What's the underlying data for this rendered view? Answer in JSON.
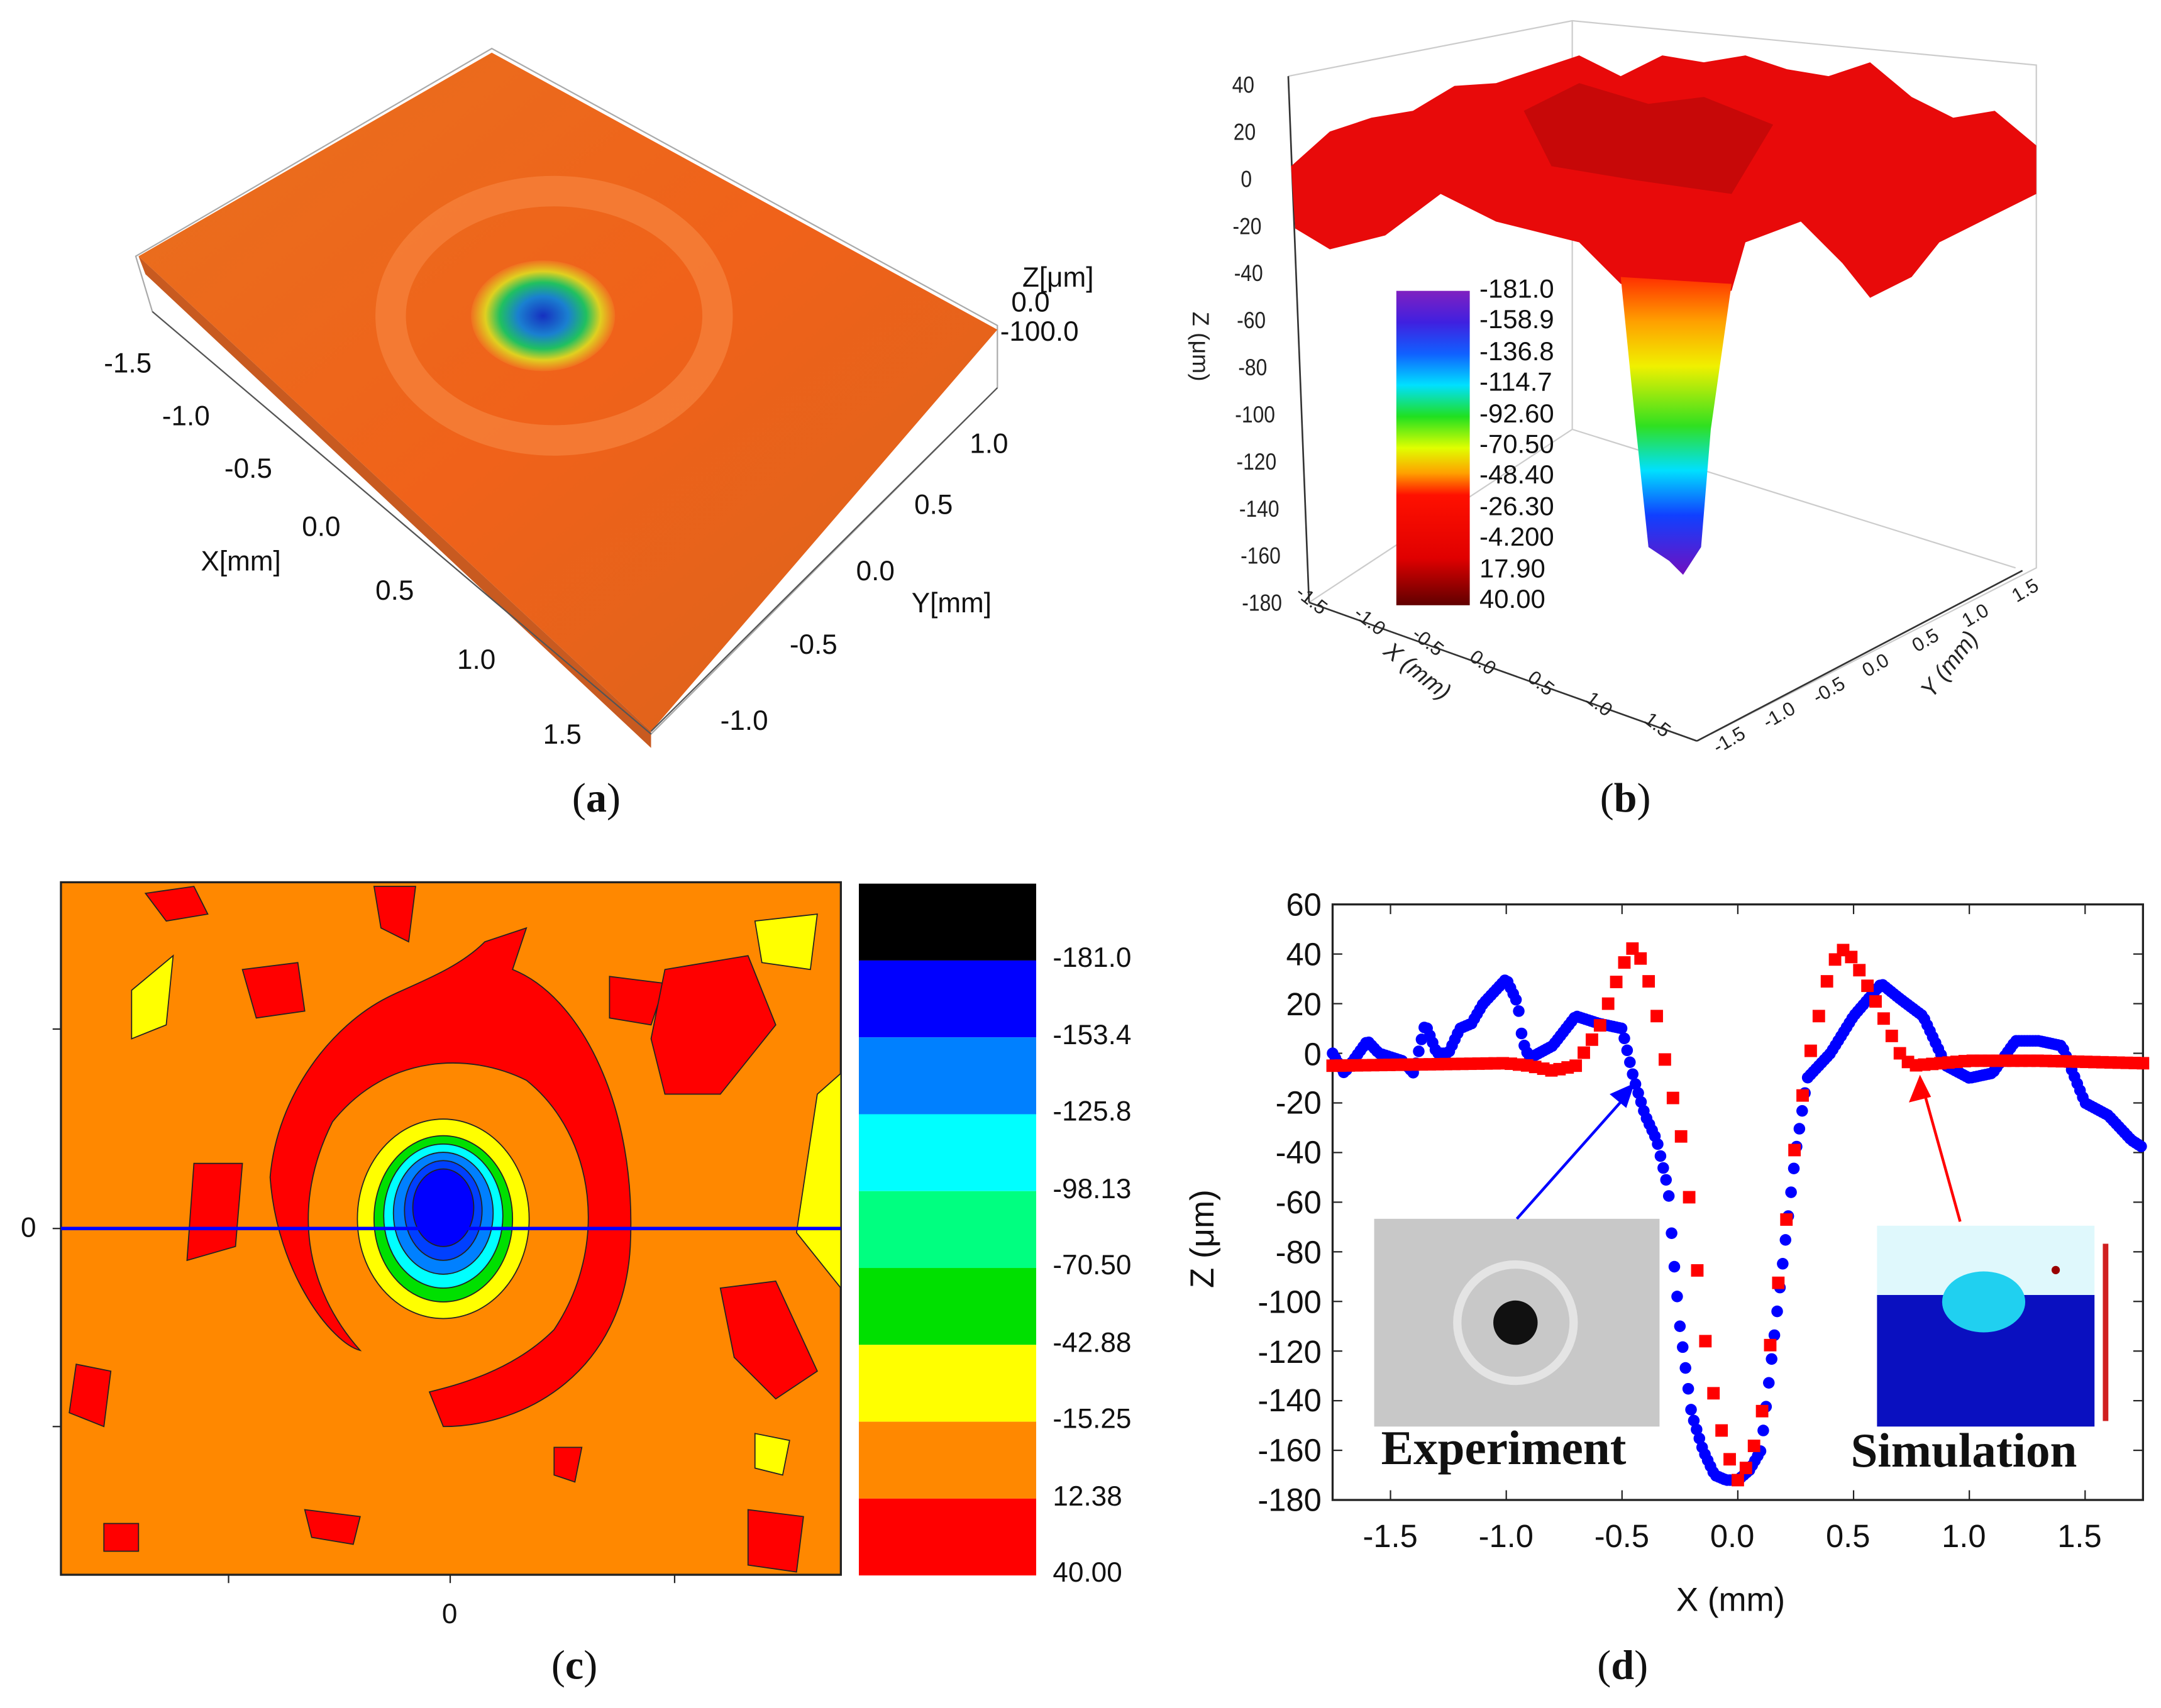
{
  "captions": {
    "a": "a",
    "b": "b",
    "c": "c",
    "d": "d"
  },
  "chart_data": [
    {
      "panel": "a",
      "type": "surface3d",
      "xlabel": "X[mm]",
      "ylabel": "Y[mm]",
      "zlabel": "Z[μm]",
      "x_ticks": [
        "-1.5",
        "-1.0",
        "-0.5",
        "0.0",
        "0.5",
        "1.0",
        "1.5"
      ],
      "y_ticks": [
        "1.0",
        "0.5",
        "0.0",
        "-0.5",
        "-1.0"
      ],
      "z_ticks": [
        "0.0",
        "-100.0"
      ],
      "colors": {
        "surface": "#f06a1a",
        "crater": "#1a4fd0"
      }
    },
    {
      "panel": "b",
      "type": "surface3d",
      "xlabel": "X (mm)",
      "ylabel": "Y (mm)",
      "zlabel": "Z (μm)",
      "z_ticks": [
        "40",
        "20",
        "0",
        "-20",
        "-40",
        "-60",
        "-80",
        "-100",
        "-120",
        "-140",
        "-160",
        "-180"
      ],
      "x_ticks": [
        "-1.5",
        "-1.0",
        "-0.5",
        "0.0",
        "0.5",
        "1.0",
        "1.5"
      ],
      "y_ticks": [
        "1.5",
        "1.0",
        "0.5",
        "0.0",
        "-0.5",
        "-1.0",
        "-1.5"
      ],
      "colorbar_labels": [
        "-181.0",
        "-158.9",
        "-136.8",
        "-114.7",
        "-92.60",
        "-70.50",
        "-48.40",
        "-26.30",
        "-4.200",
        "17.90",
        "40.00"
      ]
    },
    {
      "panel": "c",
      "type": "contour",
      "x_ticks": [
        "0"
      ],
      "y_ticks": [
        "0"
      ],
      "colorbar_labels": [
        "-181.0",
        "-153.4",
        "-125.8",
        "-98.13",
        "-70.50",
        "-42.88",
        "-15.25",
        "12.38",
        "40.00"
      ],
      "colorbar_colors": [
        "#000000",
        "#0000ff",
        "#0080ff",
        "#00ffff",
        "#00ff80",
        "#00e000",
        "#ffff00",
        "#ff8800",
        "#ff0000"
      ],
      "profile_line_color": "#0000ff"
    },
    {
      "panel": "d",
      "type": "scatter",
      "xlabel": "X (mm)",
      "ylabel": "Z (μm)",
      "xlim": [
        -1.75,
        1.75
      ],
      "ylim": [
        -180,
        60
      ],
      "x_ticks": [
        "-1.5",
        "-1.0",
        "-0.5",
        "0.0",
        "0.5",
        "1.0",
        "1.5"
      ],
      "y_ticks": [
        "60",
        "40",
        "20",
        "0",
        "-20",
        "-40",
        "-60",
        "-80",
        "-100",
        "-120",
        "-140",
        "-160",
        "-180"
      ],
      "annotations": [
        "Experiment",
        "Simulation"
      ],
      "series": [
        {
          "color": "#0000ff",
          "marker": "circle",
          "x": [
            -1.75,
            -1.7,
            -1.6,
            -1.55,
            -1.45,
            -1.4,
            -1.35,
            -1.3,
            -1.25,
            -1.2,
            -1.15,
            -1.1,
            -1.0,
            -0.95,
            -0.93,
            -0.9,
            -0.8,
            -0.7,
            -0.6,
            -0.5,
            -0.45,
            -0.4,
            -0.35,
            -0.3,
            -0.28,
            -0.25,
            -0.2,
            -0.15,
            -0.1,
            -0.05,
            0.0,
            0.05,
            0.1,
            0.15,
            0.2,
            0.25,
            0.3,
            0.4,
            0.5,
            0.62,
            0.7,
            0.8,
            0.9,
            1.0,
            1.1,
            1.2,
            1.3,
            1.4,
            1.5,
            1.6,
            1.7,
            1.75
          ],
          "y": [
            0,
            -8,
            5,
            0,
            -3,
            -8,
            12,
            0,
            0,
            10,
            12,
            20,
            30,
            20,
            5,
            -2,
            3,
            15,
            12,
            10,
            -10,
            -25,
            -35,
            -55,
            -80,
            -110,
            -145,
            -160,
            -170,
            -172,
            -172,
            -168,
            -160,
            -120,
            -80,
            -40,
            -10,
            0,
            15,
            28,
            22,
            15,
            -5,
            -10,
            -8,
            5,
            5,
            3,
            -20,
            -25,
            -35,
            -38
          ]
        },
        {
          "color": "#ff0000",
          "marker": "square",
          "x": [
            -1.75,
            -1.0,
            -0.9,
            -0.8,
            -0.7,
            -0.6,
            -0.5,
            -0.45,
            -0.4,
            -0.35,
            -0.3,
            -0.25,
            -0.2,
            -0.15,
            -0.1,
            -0.05,
            0.0,
            0.05,
            0.1,
            0.15,
            0.2,
            0.25,
            0.3,
            0.35,
            0.4,
            0.45,
            0.5,
            0.6,
            0.7,
            0.75,
            1.0,
            1.3,
            1.75
          ],
          "y": [
            -5,
            -4,
            -5,
            -7,
            -5,
            10,
            35,
            43,
            35,
            15,
            -10,
            -30,
            -65,
            -110,
            -140,
            -160,
            -172,
            -165,
            -148,
            -110,
            -75,
            -35,
            -5,
            15,
            35,
            42,
            38,
            20,
            0,
            -5,
            -3,
            -3,
            -4
          ]
        }
      ]
    }
  ]
}
